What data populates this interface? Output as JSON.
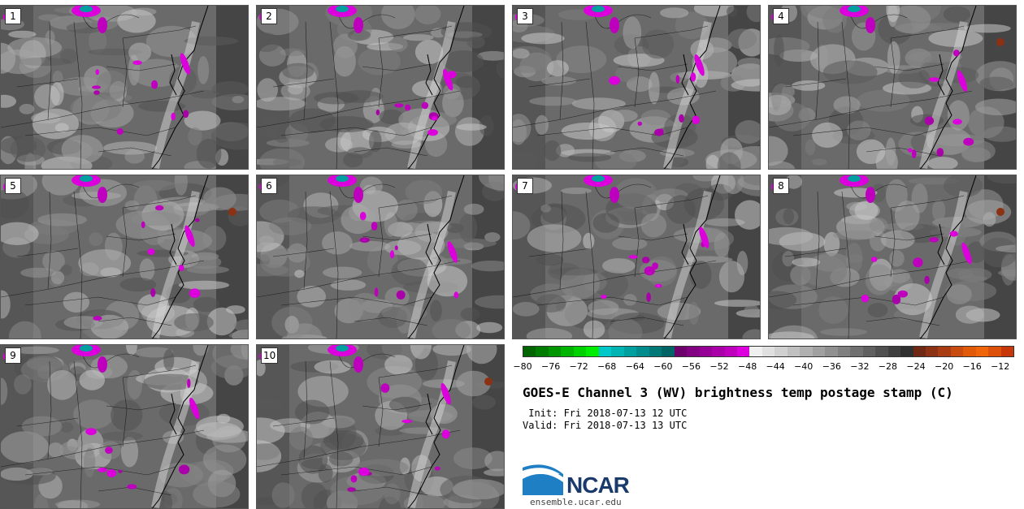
{
  "panels": [
    {
      "label": "1"
    },
    {
      "label": "2"
    },
    {
      "label": "3"
    },
    {
      "label": "4"
    },
    {
      "label": "5"
    },
    {
      "label": "6"
    },
    {
      "label": "7"
    },
    {
      "label": "8"
    },
    {
      "label": "9"
    },
    {
      "label": "10"
    }
  ],
  "colorbar": {
    "min": -80,
    "max": -10,
    "tick_labels": [
      "−80",
      "−76",
      "−72",
      "−68",
      "−64",
      "−60",
      "−56",
      "−52",
      "−48",
      "−44",
      "−40",
      "−36",
      "−32",
      "−28",
      "−24",
      "−20",
      "−16",
      "−12"
    ],
    "colors": [
      "#006400",
      "#007d00",
      "#009600",
      "#00b400",
      "#00d200",
      "#00ec00",
      "#00c8c8",
      "#00b4b4",
      "#00a0a0",
      "#008c8c",
      "#007878",
      "#006464",
      "#6e006e",
      "#820082",
      "#960096",
      "#aa00aa",
      "#be00be",
      "#dc00dc",
      "#f0f0f0",
      "#e0e0e0",
      "#d0d0d0",
      "#c0c0c0",
      "#b0b0b0",
      "#a0a0a0",
      "#909090",
      "#808080",
      "#707070",
      "#606060",
      "#505050",
      "#404040",
      "#303030",
      "#6e2814",
      "#8c3214",
      "#aa3c14",
      "#c84b0f",
      "#e15a0a",
      "#f0640a",
      "#dc500a",
      "#c8370a"
    ]
  },
  "title": "GOES-E Channel 3 (WV) brightness temp postage stamp (C)",
  "init_line": " Init: Fri 2018-07-13 12 UTC",
  "valid_line": "Valid: Fri 2018-07-13 13 UTC",
  "logo_text": "NCAR",
  "website": "ensemble.ucar.edu"
}
